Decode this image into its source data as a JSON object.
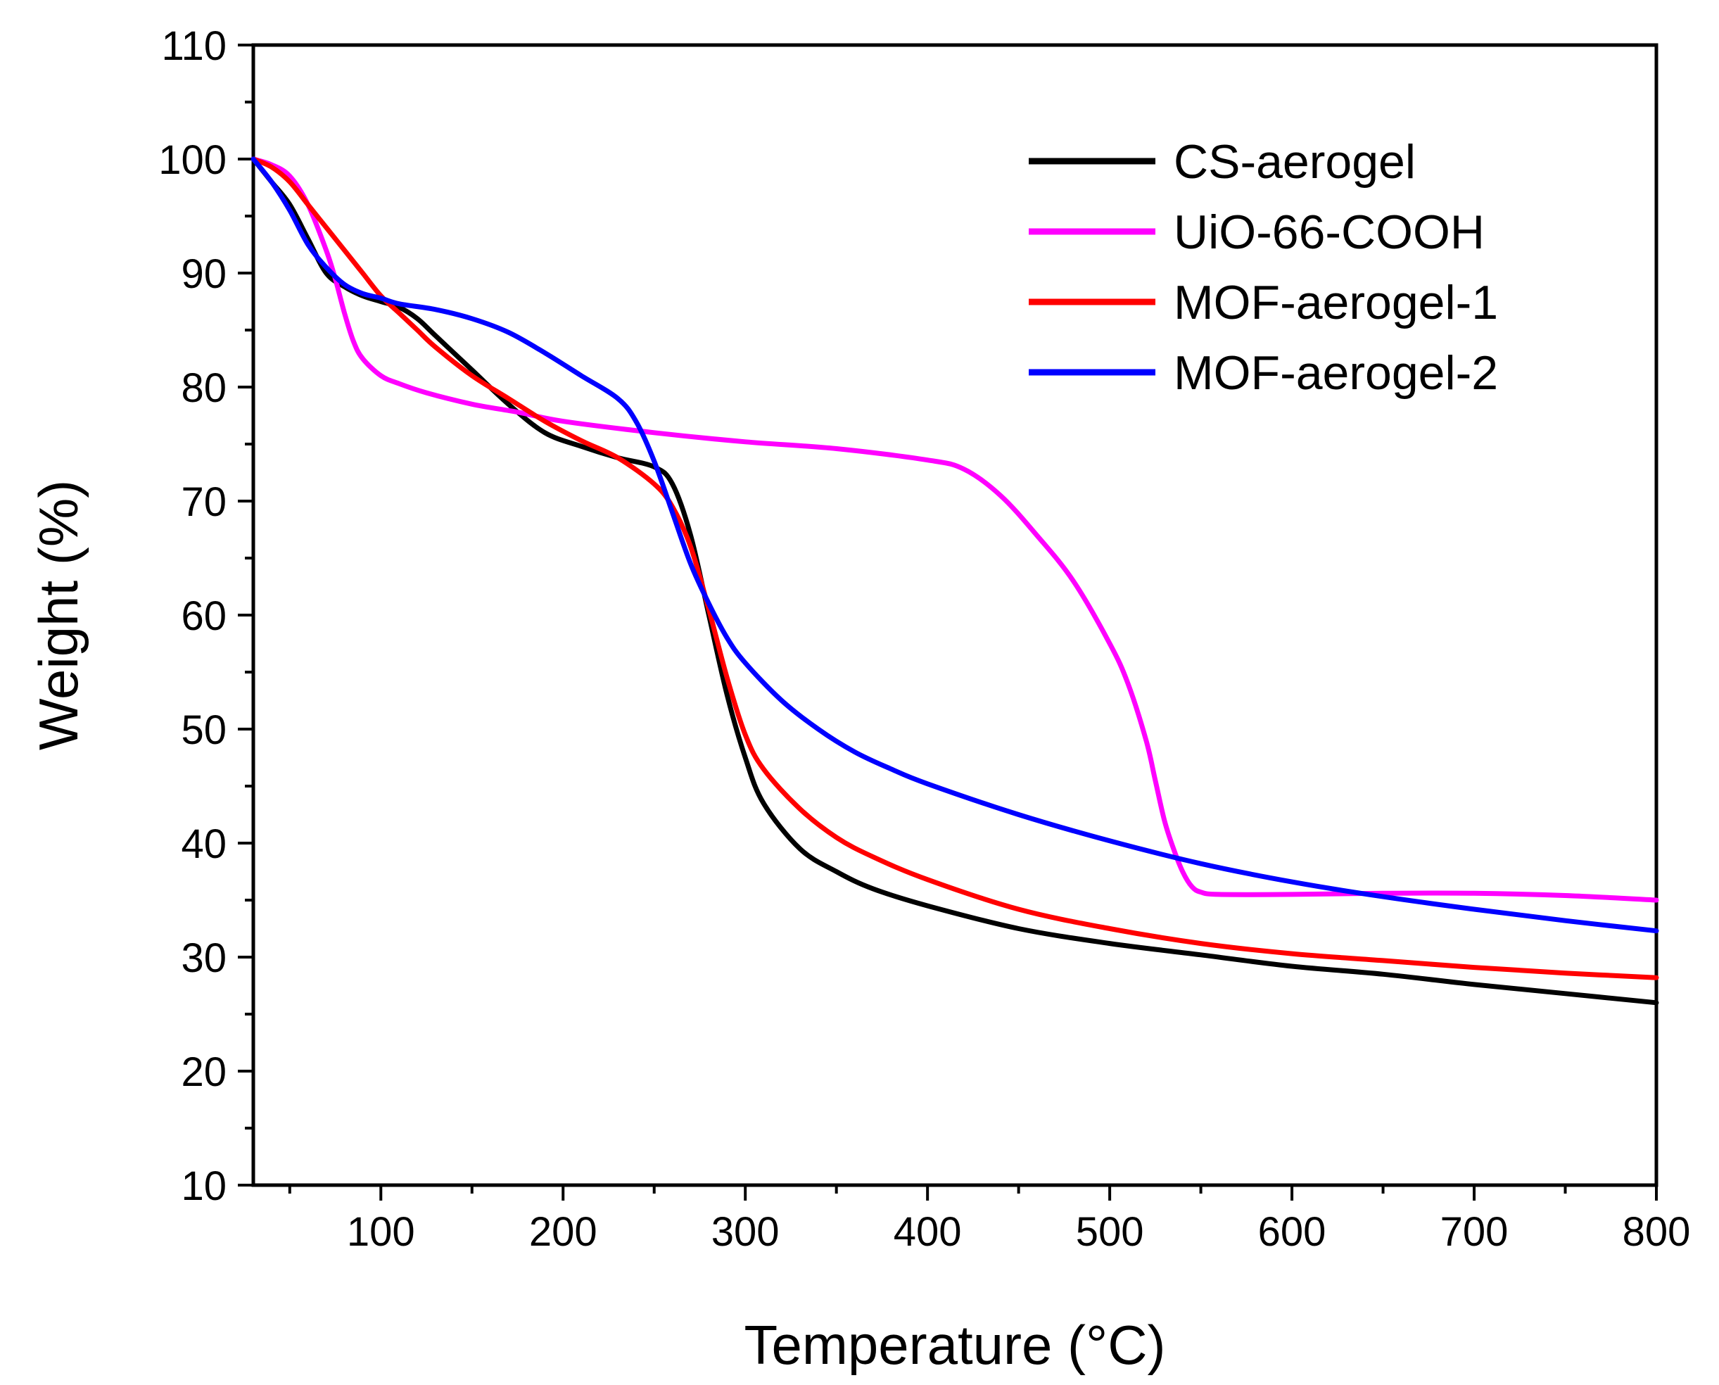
{
  "chart_data": {
    "type": "line",
    "xlabel": "Temperature (°C)",
    "ylabel": "Weight (%)",
    "xlim": [
      30,
      800
    ],
    "ylim": [
      10,
      110
    ],
    "xticks": [
      100,
      200,
      300,
      400,
      500,
      600,
      700,
      800
    ],
    "yticks": [
      10,
      20,
      30,
      40,
      50,
      60,
      70,
      80,
      90,
      100,
      110
    ],
    "grid": false,
    "legend_position": "top-right",
    "series": [
      {
        "name": "CS-aerogel",
        "color": "#000000",
        "points": [
          [
            30,
            100
          ],
          [
            40,
            98
          ],
          [
            50,
            96
          ],
          [
            60,
            93
          ],
          [
            70,
            90
          ],
          [
            80,
            88.8
          ],
          [
            90,
            88
          ],
          [
            100,
            87.5
          ],
          [
            110,
            87
          ],
          [
            120,
            86
          ],
          [
            130,
            84.5
          ],
          [
            150,
            81.5
          ],
          [
            170,
            78.5
          ],
          [
            190,
            76
          ],
          [
            210,
            74.8
          ],
          [
            230,
            73.8
          ],
          [
            250,
            73
          ],
          [
            260,
            71.5
          ],
          [
            270,
            67
          ],
          [
            280,
            60
          ],
          [
            290,
            53
          ],
          [
            300,
            47.5
          ],
          [
            310,
            43.5
          ],
          [
            330,
            39.5
          ],
          [
            350,
            37.5
          ],
          [
            370,
            36
          ],
          [
            400,
            34.5
          ],
          [
            450,
            32.5
          ],
          [
            500,
            31.2
          ],
          [
            550,
            30.2
          ],
          [
            600,
            29.2
          ],
          [
            650,
            28.5
          ],
          [
            700,
            27.6
          ],
          [
            750,
            26.8
          ],
          [
            800,
            26
          ]
        ]
      },
      {
        "name": "UiO-66-COOH",
        "color": "#ff00ff",
        "points": [
          [
            30,
            100
          ],
          [
            40,
            99.5
          ],
          [
            50,
            98.5
          ],
          [
            60,
            96
          ],
          [
            70,
            92
          ],
          [
            75,
            89.5
          ],
          [
            80,
            86.5
          ],
          [
            85,
            84
          ],
          [
            90,
            82.5
          ],
          [
            100,
            81
          ],
          [
            110,
            80.3
          ],
          [
            125,
            79.5
          ],
          [
            150,
            78.5
          ],
          [
            175,
            77.8
          ],
          [
            200,
            77
          ],
          [
            250,
            76
          ],
          [
            300,
            75.2
          ],
          [
            350,
            74.6
          ],
          [
            400,
            73.6
          ],
          [
            420,
            72.8
          ],
          [
            440,
            70.5
          ],
          [
            460,
            67
          ],
          [
            480,
            63
          ],
          [
            500,
            57.5
          ],
          [
            510,
            54
          ],
          [
            520,
            49
          ],
          [
            525,
            45.5
          ],
          [
            530,
            42
          ],
          [
            535,
            39.5
          ],
          [
            540,
            37.5
          ],
          [
            545,
            36.2
          ],
          [
            550,
            35.7
          ],
          [
            560,
            35.5
          ],
          [
            600,
            35.5
          ],
          [
            650,
            35.6
          ],
          [
            700,
            35.6
          ],
          [
            750,
            35.4
          ],
          [
            800,
            35
          ]
        ]
      },
      {
        "name": "MOF-aerogel-1",
        "color": "#ff0000",
        "points": [
          [
            30,
            100
          ],
          [
            40,
            99.3
          ],
          [
            50,
            98
          ],
          [
            60,
            96
          ],
          [
            70,
            94
          ],
          [
            80,
            92
          ],
          [
            90,
            90
          ],
          [
            100,
            88
          ],
          [
            110,
            86.5
          ],
          [
            120,
            85
          ],
          [
            130,
            83.5
          ],
          [
            150,
            81
          ],
          [
            170,
            79
          ],
          [
            190,
            77
          ],
          [
            210,
            75.3
          ],
          [
            230,
            73.8
          ],
          [
            250,
            71.5
          ],
          [
            260,
            69.5
          ],
          [
            270,
            66
          ],
          [
            280,
            60.5
          ],
          [
            290,
            54.5
          ],
          [
            300,
            49.5
          ],
          [
            310,
            46.5
          ],
          [
            330,
            43
          ],
          [
            350,
            40.5
          ],
          [
            370,
            38.8
          ],
          [
            400,
            36.8
          ],
          [
            450,
            34.2
          ],
          [
            500,
            32.5
          ],
          [
            550,
            31.2
          ],
          [
            600,
            30.3
          ],
          [
            650,
            29.7
          ],
          [
            700,
            29.1
          ],
          [
            750,
            28.6
          ],
          [
            800,
            28.2
          ]
        ]
      },
      {
        "name": "MOF-aerogel-2",
        "color": "#0000ff",
        "points": [
          [
            30,
            100
          ],
          [
            40,
            98
          ],
          [
            50,
            95.5
          ],
          [
            60,
            92.5
          ],
          [
            70,
            90.5
          ],
          [
            80,
            89
          ],
          [
            90,
            88.2
          ],
          [
            100,
            87.8
          ],
          [
            110,
            87.3
          ],
          [
            130,
            86.8
          ],
          [
            150,
            86
          ],
          [
            170,
            84.8
          ],
          [
            190,
            83
          ],
          [
            210,
            81
          ],
          [
            230,
            79
          ],
          [
            240,
            77
          ],
          [
            250,
            73.5
          ],
          [
            260,
            69
          ],
          [
            270,
            64.5
          ],
          [
            280,
            61
          ],
          [
            290,
            58
          ],
          [
            300,
            55.8
          ],
          [
            320,
            52.5
          ],
          [
            340,
            50
          ],
          [
            360,
            48
          ],
          [
            380,
            46.5
          ],
          [
            400,
            45.2
          ],
          [
            450,
            42.5
          ],
          [
            500,
            40.2
          ],
          [
            550,
            38.2
          ],
          [
            600,
            36.6
          ],
          [
            650,
            35.3
          ],
          [
            700,
            34.2
          ],
          [
            750,
            33.2
          ],
          [
            800,
            32.3
          ]
        ]
      }
    ]
  }
}
